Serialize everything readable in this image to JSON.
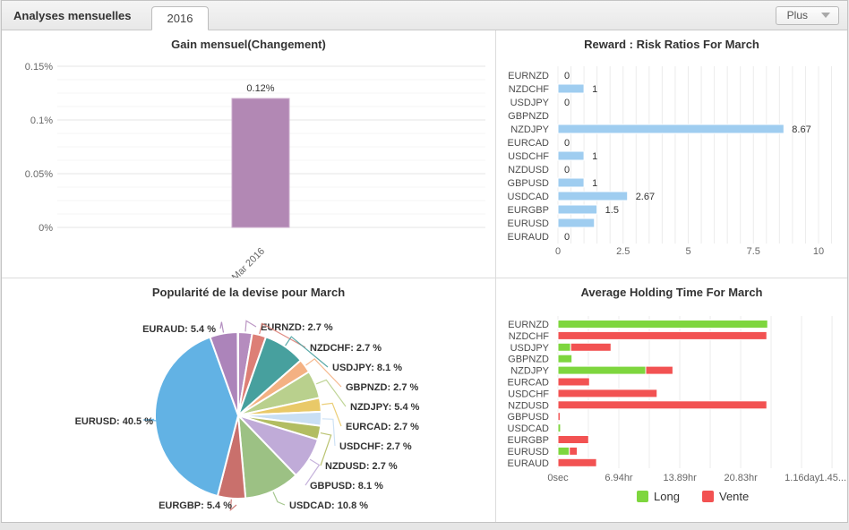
{
  "header": {
    "title": "Analyses mensuelles",
    "tab_label": "2016",
    "menu_label": "Plus"
  },
  "chart_data": [
    {
      "type": "bar",
      "title": "Gain mensuel(Changement)",
      "categories": [
        "Mar 2016"
      ],
      "values": [
        0.12
      ],
      "data_labels": [
        "0.12%"
      ],
      "yticks": [
        {
          "v": 0.15,
          "label": "0.15%"
        },
        {
          "v": 0.1,
          "label": "0.1%"
        },
        {
          "v": 0.05,
          "label": "0.05%"
        },
        {
          "v": 0,
          "label": "0%"
        }
      ],
      "ylim": [
        0,
        0.15
      ],
      "grid": "on",
      "bar_color": "#b288b4"
    },
    {
      "type": "bar",
      "orientation": "horizontal",
      "title": "Reward : Risk Ratios For March",
      "categories": [
        "EURNZD",
        "NZDCHF",
        "USDJPY",
        "GBPNZD",
        "NZDJPY",
        "EURCAD",
        "USDCHF",
        "NZDUSD",
        "GBPUSD",
        "USDCAD",
        "EURGBP",
        "EURUSD",
        "EURAUD"
      ],
      "values": [
        0,
        1,
        0,
        0,
        8.67,
        0,
        1,
        0,
        1,
        2.67,
        1.5,
        1.4,
        0
      ],
      "data_labels": [
        "0",
        "1",
        "0",
        "",
        "8.67",
        "0",
        "1",
        "0",
        "1",
        "2.67",
        "1.5",
        "",
        "0"
      ],
      "xticks": [
        {
          "v": 0,
          "label": "0"
        },
        {
          "v": 2.5,
          "label": "2.5"
        },
        {
          "v": 5,
          "label": "5"
        },
        {
          "v": 7.5,
          "label": "7.5"
        },
        {
          "v": 10,
          "label": "10"
        }
      ],
      "xlim": [
        0,
        10.85
      ],
      "grid": "on",
      "bar_color": "#9fcdf0"
    },
    {
      "type": "pie",
      "title": "Popularité de la devise pour March",
      "slices": [
        {
          "name": "EURNZD",
          "pct": 2.7,
          "color": "#b58cbe"
        },
        {
          "name": "NZDCHF",
          "pct": 2.7,
          "color": "#dd7f76"
        },
        {
          "name": "USDJPY",
          "pct": 8.1,
          "color": "#47a09e"
        },
        {
          "name": "GBPNZD",
          "pct": 2.7,
          "color": "#f4b183"
        },
        {
          "name": "NZDJPY",
          "pct": 5.4,
          "color": "#b9d08d"
        },
        {
          "name": "EURCAD",
          "pct": 2.7,
          "color": "#e9c968"
        },
        {
          "name": "USDCHF",
          "pct": 2.7,
          "color": "#c9dff4"
        },
        {
          "name": "NZDUSD",
          "pct": 2.7,
          "color": "#b2bd62"
        },
        {
          "name": "GBPUSD",
          "pct": 8.1,
          "color": "#c0abd8"
        },
        {
          "name": "USDCAD",
          "pct": 10.8,
          "color": "#9cc184"
        },
        {
          "name": "EURGBP",
          "pct": 5.4,
          "color": "#c9706c"
        },
        {
          "name": "EURUSD",
          "pct": 40.5,
          "color": "#62b2e4"
        },
        {
          "name": "EURAUD",
          "pct": 5.4,
          "color": "#ac84ba"
        }
      ],
      "label_suffix": " %"
    },
    {
      "type": "stacked-bar-horizontal",
      "title": "Average Holding Time For March",
      "categories": [
        "EURNZD",
        "NZDCHF",
        "USDJPY",
        "GBPNZD",
        "NZDJPY",
        "EURCAD",
        "USDCHF",
        "NZDUSD",
        "GBPUSD",
        "USDCAD",
        "EURGBP",
        "EURUSD",
        "EURAUD"
      ],
      "series": [
        {
          "name": "Long",
          "color": "#7ed63e",
          "values_hr": [
            23.9,
            0,
            1.45,
            1.6,
            10.0,
            0,
            0,
            0,
            0,
            0.3,
            0,
            1.3,
            0
          ]
        },
        {
          "name": "Vente",
          "color": "#f25252",
          "values_hr": [
            0,
            23.8,
            4.6,
            0,
            3.1,
            3.6,
            11.3,
            23.8,
            0.25,
            0,
            3.5,
            0.9,
            4.4
          ]
        }
      ],
      "xticks": [
        {
          "v": 0,
          "label": "0sec"
        },
        {
          "v": 6.94,
          "label": "6.94hr"
        },
        {
          "v": 13.89,
          "label": "13.89hr"
        },
        {
          "v": 20.83,
          "label": "20.83hr"
        },
        {
          "v": 27.83,
          "label": "1.16day"
        },
        {
          "v": 34.78,
          "label": "1.45..."
        }
      ],
      "xlim": [
        0,
        32.5
      ],
      "grid": "on",
      "legend_position": "bottom"
    }
  ]
}
